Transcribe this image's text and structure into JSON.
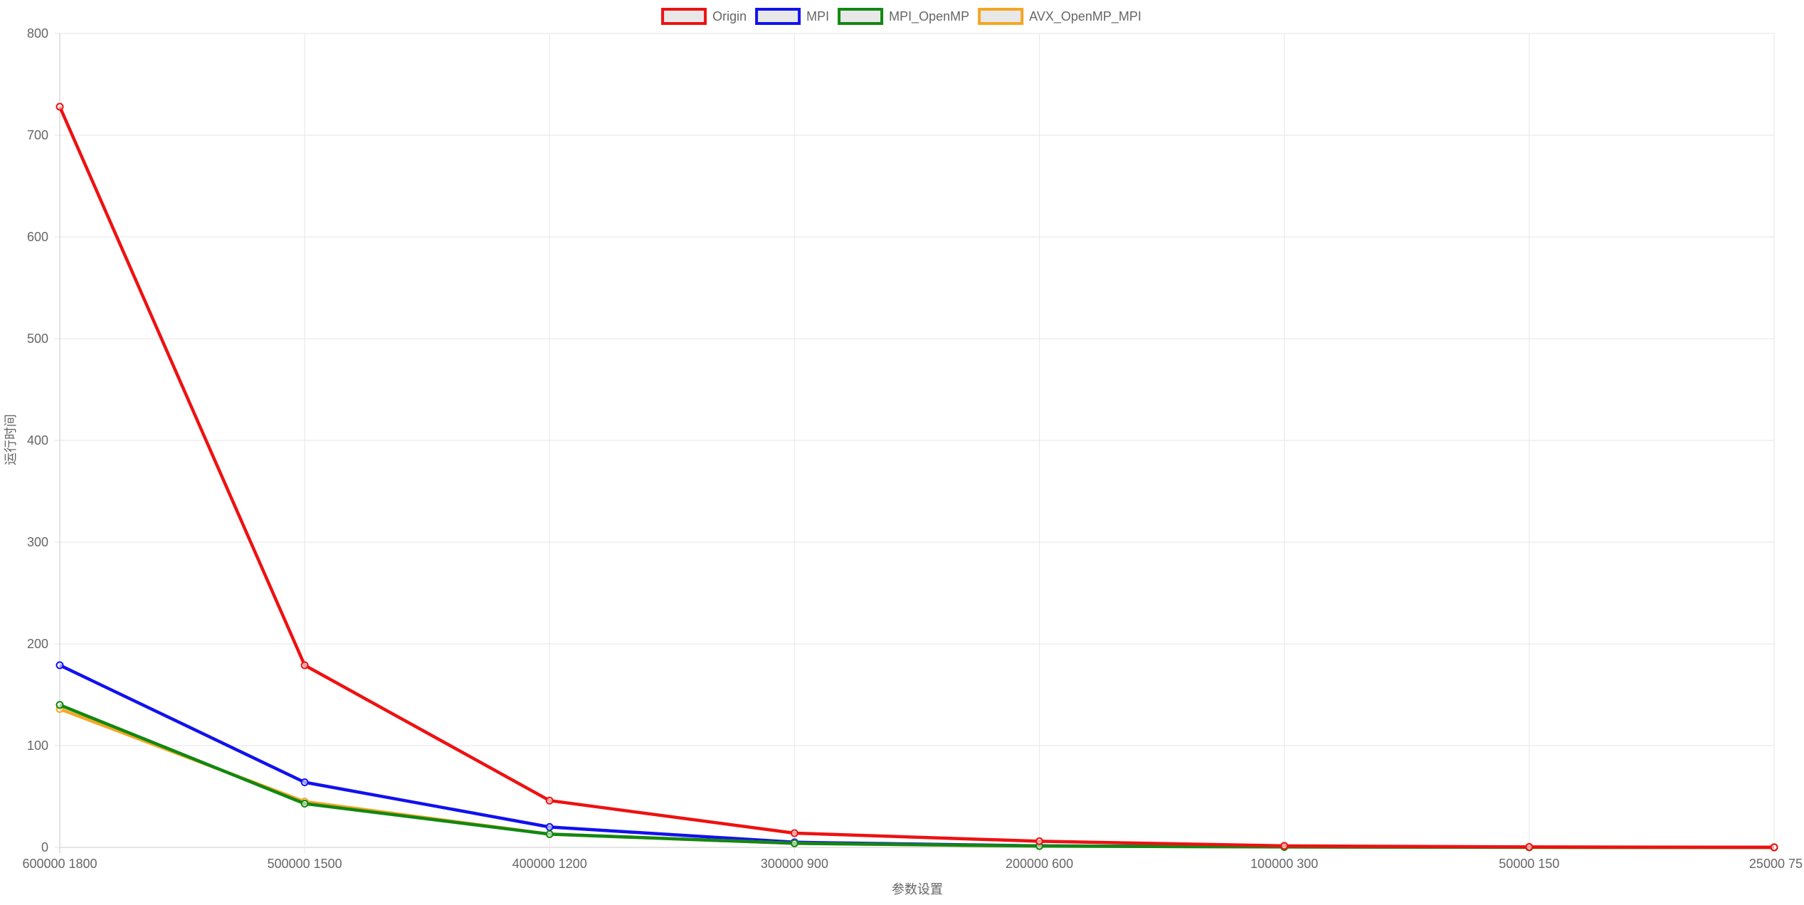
{
  "chart_data": {
    "type": "line",
    "title": "",
    "xlabel": "参数设置",
    "ylabel": "运行时间",
    "categories": [
      "600000 1800",
      "500000 1500",
      "400000 1200",
      "300000 900",
      "200000 600",
      "100000 300",
      "50000 150",
      "25000 75"
    ],
    "ylim": [
      0,
      800
    ],
    "yticks": [
      "0",
      "100",
      "200",
      "300",
      "400",
      "500",
      "600",
      "700",
      "800"
    ],
    "grid": true,
    "legend_position": "top-center",
    "series": [
      {
        "name": "Origin",
        "color": "#ee1111",
        "values": [
          728,
          179,
          46,
          14,
          6,
          1.5,
          0.4,
          0.1
        ]
      },
      {
        "name": "MPI",
        "color": "#1111ee",
        "values": [
          179,
          64,
          20,
          5,
          1.5,
          0.5,
          0.15,
          0.05
        ]
      },
      {
        "name": "AVX_OpenMP_MPI",
        "color": "#f5a623",
        "values": [
          136,
          45,
          13,
          4,
          1.2,
          0.4,
          0.1,
          0.03
        ]
      },
      {
        "name": "MPI_OpenMP",
        "color": "#118811",
        "values": [
          140,
          43,
          13,
          4,
          1.3,
          0.4,
          0.1,
          0.03
        ]
      }
    ],
    "legend_order": [
      "Origin",
      "MPI",
      "MPI_OpenMP",
      "AVX_OpenMP_MPI"
    ]
  }
}
